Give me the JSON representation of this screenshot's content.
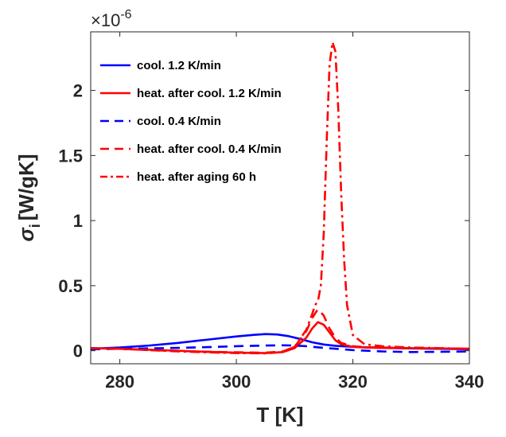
{
  "chart_data": {
    "type": "line",
    "xlabel": "T [K]",
    "ylabel": "σ",
    "ylabel_subscript": "i",
    "ylabel_unit": "[W/gK]",
    "exponent_prefix": "×10",
    "exponent_power": "-6",
    "xlim": [
      275,
      340
    ],
    "ylim": [
      -0.1,
      2.45
    ],
    "x_ticks": [
      280,
      300,
      320,
      340
    ],
    "x_tick_labels": [
      "280",
      "300",
      "320",
      "340"
    ],
    "y_ticks": [
      0,
      0.5,
      1,
      1.5,
      2
    ],
    "y_tick_labels": [
      "0",
      "0.5",
      "1",
      "1.5",
      "2"
    ],
    "grid": false,
    "legend_position": "top-left",
    "series": [
      {
        "name": "cool. 1.2 K/min",
        "color": "#0000ff",
        "style": "solid",
        "x": [
          275,
          280,
          285,
          290,
          295,
          300,
          303,
          305,
          307,
          309,
          311,
          313,
          315,
          317,
          320,
          325,
          330,
          335,
          340
        ],
        "y": [
          0.015,
          0.025,
          0.04,
          0.06,
          0.085,
          0.11,
          0.122,
          0.128,
          0.125,
          0.112,
          0.09,
          0.065,
          0.048,
          0.038,
          0.03,
          0.022,
          0.018,
          0.015,
          0.012
        ]
      },
      {
        "name": "heat. after cool. 1.2 K/min",
        "color": "#ff0000",
        "style": "solid",
        "x": [
          275,
          280,
          285,
          290,
          295,
          300,
          305,
          308,
          310,
          312,
          313,
          314,
          315,
          316,
          317,
          318,
          320,
          322,
          325,
          330,
          335,
          340
        ],
        "y": [
          0.02,
          0.015,
          0.008,
          0.0,
          -0.008,
          -0.015,
          -0.018,
          -0.01,
          0.02,
          0.1,
          0.17,
          0.22,
          0.2,
          0.14,
          0.08,
          0.05,
          0.03,
          0.025,
          0.022,
          0.02,
          0.018,
          0.015
        ]
      },
      {
        "name": "cool. 0.4 K/min",
        "color": "#0000ff",
        "style": "dashed",
        "x": [
          275,
          280,
          285,
          290,
          295,
          300,
          305,
          308,
          310,
          312,
          315,
          320,
          325,
          330,
          335,
          340
        ],
        "y": [
          0.012,
          0.015,
          0.018,
          0.022,
          0.028,
          0.035,
          0.04,
          0.042,
          0.04,
          0.035,
          0.022,
          0.005,
          -0.005,
          -0.01,
          -0.008,
          -0.005
        ]
      },
      {
        "name": "heat. after cool. 0.4 K/min",
        "color": "#ff0000",
        "style": "dashed",
        "x": [
          275,
          280,
          285,
          290,
          295,
          300,
          305,
          308,
          310,
          312,
          313,
          314,
          315,
          316,
          317,
          318,
          320,
          322,
          325,
          330,
          335,
          340
        ],
        "y": [
          0.02,
          0.015,
          0.005,
          -0.002,
          -0.008,
          -0.012,
          -0.015,
          -0.005,
          0.03,
          0.15,
          0.25,
          0.32,
          0.27,
          0.17,
          0.1,
          0.06,
          0.035,
          0.028,
          0.025,
          0.02,
          0.018,
          0.015
        ]
      },
      {
        "name": "heat. after aging 60 h",
        "color": "#ff0000",
        "style": "dashdot",
        "x": [
          275,
          280,
          285,
          290,
          295,
          300,
          305,
          308,
          310,
          312,
          313,
          313.5,
          314,
          314.5,
          315,
          315.5,
          316,
          316.5,
          317,
          317.5,
          318,
          318.5,
          319,
          320,
          322,
          325,
          330,
          335,
          340
        ],
        "y": [
          0.02,
          0.015,
          0.005,
          -0.005,
          -0.012,
          -0.018,
          -0.02,
          -0.01,
          0.03,
          0.16,
          0.28,
          0.35,
          0.38,
          0.5,
          0.9,
          1.6,
          2.2,
          2.37,
          2.3,
          1.85,
          1.2,
          0.7,
          0.35,
          0.12,
          0.05,
          0.035,
          0.025,
          0.02,
          0.015
        ]
      }
    ]
  }
}
